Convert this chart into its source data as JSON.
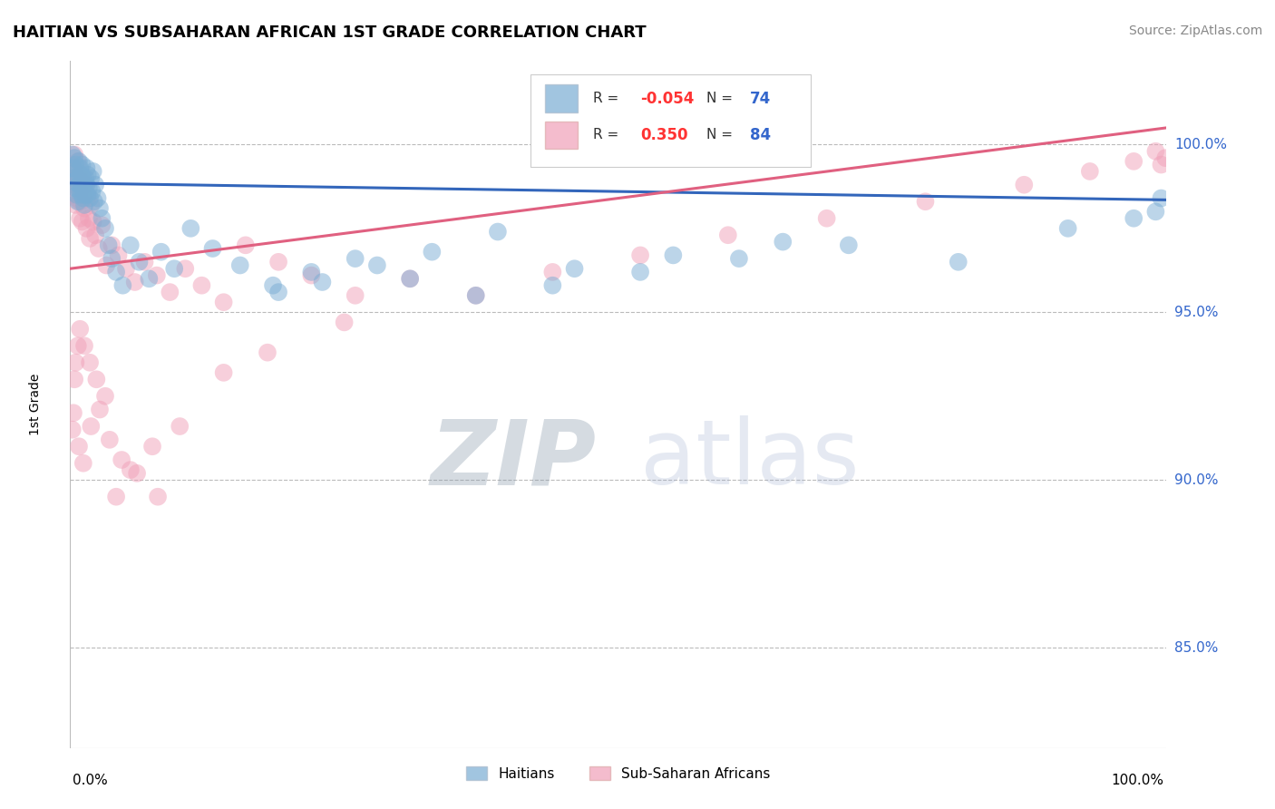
{
  "title": "HAITIAN VS SUBSAHARAN AFRICAN 1ST GRADE CORRELATION CHART",
  "source": "Source: ZipAtlas.com",
  "ylabel": "1st Grade",
  "ytick_labels": [
    "100.0%",
    "95.0%",
    "90.0%",
    "85.0%"
  ],
  "ytick_values": [
    1.0,
    0.95,
    0.9,
    0.85
  ],
  "xmin": 0.0,
  "xmax": 1.0,
  "ymin": 0.82,
  "ymax": 1.025,
  "legend_r_blue": "-0.054",
  "legend_n_blue": "74",
  "legend_r_pink": "0.350",
  "legend_n_pink": "84",
  "blue_color": "#7aadd4",
  "pink_color": "#f0a0b8",
  "blue_line_color": "#3366bb",
  "pink_line_color": "#e06080",
  "watermark_zip": "ZIP",
  "watermark_atlas": "atlas",
  "blue_line_x0": 0.0,
  "blue_line_y0": 0.9885,
  "blue_line_x1": 1.0,
  "blue_line_y1": 0.9835,
  "pink_line_x0": 0.0,
  "pink_line_y0": 0.963,
  "pink_line_x1": 1.0,
  "pink_line_y1": 1.005,
  "blue_scatter_x": [
    0.002,
    0.003,
    0.003,
    0.004,
    0.004,
    0.005,
    0.005,
    0.006,
    0.006,
    0.007,
    0.007,
    0.008,
    0.008,
    0.009,
    0.009,
    0.01,
    0.01,
    0.011,
    0.011,
    0.012,
    0.012,
    0.013,
    0.013,
    0.014,
    0.014,
    0.015,
    0.015,
    0.016,
    0.016,
    0.017,
    0.018,
    0.019,
    0.02,
    0.021,
    0.022,
    0.023,
    0.025,
    0.027,
    0.029,
    0.032,
    0.035,
    0.038,
    0.042,
    0.048,
    0.055,
    0.063,
    0.072,
    0.083,
    0.095,
    0.11,
    0.13,
    0.155,
    0.185,
    0.22,
    0.26,
    0.31,
    0.37,
    0.44,
    0.52,
    0.61,
    0.71,
    0.81,
    0.91,
    0.97,
    0.99,
    0.995,
    0.65,
    0.55,
    0.46,
    0.39,
    0.33,
    0.28,
    0.23,
    0.19
  ],
  "blue_scatter_y": [
    0.997,
    0.993,
    0.989,
    0.996,
    0.99,
    0.994,
    0.987,
    0.992,
    0.985,
    0.99,
    0.983,
    0.988,
    0.995,
    0.986,
    0.993,
    0.985,
    0.991,
    0.987,
    0.994,
    0.984,
    0.99,
    0.988,
    0.982,
    0.99,
    0.985,
    0.993,
    0.988,
    0.985,
    0.991,
    0.987,
    0.984,
    0.99,
    0.986,
    0.992,
    0.983,
    0.988,
    0.984,
    0.981,
    0.978,
    0.975,
    0.97,
    0.966,
    0.962,
    0.958,
    0.97,
    0.965,
    0.96,
    0.968,
    0.963,
    0.975,
    0.969,
    0.964,
    0.958,
    0.962,
    0.966,
    0.96,
    0.955,
    0.958,
    0.962,
    0.966,
    0.97,
    0.965,
    0.975,
    0.978,
    0.98,
    0.984,
    0.971,
    0.967,
    0.963,
    0.974,
    0.968,
    0.964,
    0.959,
    0.956
  ],
  "pink_scatter_x": [
    0.002,
    0.003,
    0.003,
    0.004,
    0.004,
    0.005,
    0.005,
    0.006,
    0.006,
    0.007,
    0.007,
    0.008,
    0.008,
    0.009,
    0.009,
    0.01,
    0.01,
    0.011,
    0.011,
    0.012,
    0.013,
    0.014,
    0.015,
    0.016,
    0.017,
    0.018,
    0.019,
    0.021,
    0.023,
    0.026,
    0.029,
    0.033,
    0.038,
    0.044,
    0.051,
    0.059,
    0.068,
    0.079,
    0.091,
    0.105,
    0.12,
    0.14,
    0.16,
    0.19,
    0.22,
    0.26,
    0.31,
    0.37,
    0.44,
    0.52,
    0.6,
    0.69,
    0.78,
    0.87,
    0.93,
    0.97,
    0.99,
    0.995,
    0.999,
    0.25,
    0.18,
    0.14,
    0.1,
    0.075,
    0.055,
    0.042,
    0.032,
    0.024,
    0.018,
    0.013,
    0.009,
    0.007,
    0.005,
    0.004,
    0.003,
    0.002,
    0.008,
    0.012,
    0.019,
    0.027,
    0.036,
    0.047,
    0.061,
    0.08
  ],
  "pink_scatter_y": [
    0.994,
    0.99,
    0.985,
    0.997,
    0.988,
    0.993,
    0.982,
    0.99,
    0.984,
    0.988,
    0.995,
    0.983,
    0.991,
    0.986,
    0.978,
    0.99,
    0.983,
    0.989,
    0.977,
    0.985,
    0.981,
    0.988,
    0.975,
    0.984,
    0.978,
    0.972,
    0.982,
    0.977,
    0.973,
    0.969,
    0.976,
    0.964,
    0.97,
    0.967,
    0.963,
    0.959,
    0.965,
    0.961,
    0.956,
    0.963,
    0.958,
    0.953,
    0.97,
    0.965,
    0.961,
    0.955,
    0.96,
    0.955,
    0.962,
    0.967,
    0.973,
    0.978,
    0.983,
    0.988,
    0.992,
    0.995,
    0.998,
    0.994,
    0.996,
    0.947,
    0.938,
    0.932,
    0.916,
    0.91,
    0.903,
    0.895,
    0.925,
    0.93,
    0.935,
    0.94,
    0.945,
    0.94,
    0.935,
    0.93,
    0.92,
    0.915,
    0.91,
    0.905,
    0.916,
    0.921,
    0.912,
    0.906,
    0.902,
    0.895
  ]
}
